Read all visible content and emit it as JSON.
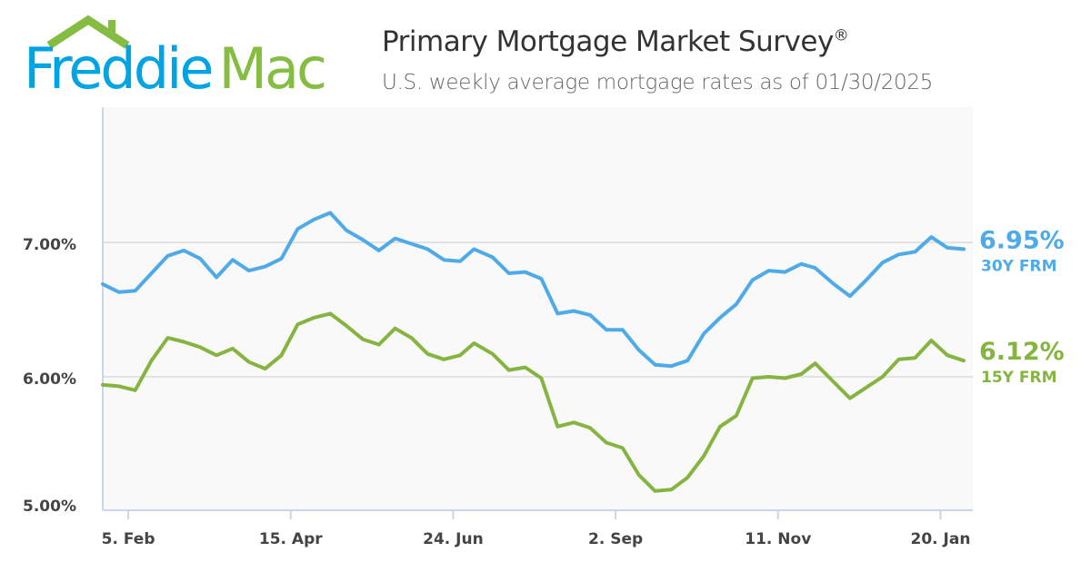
{
  "logo": {
    "text_part1": "Freddie",
    "text_part2": "Mac",
    "color_blue": "#00a3e3",
    "color_green": "#84bd41"
  },
  "header": {
    "title": "Primary Mortgage Market Survey",
    "title_mark": "®",
    "subtitle": "U.S. weekly average mortgage rates as of 01/30/2025"
  },
  "chart_data": {
    "type": "line",
    "title": "Primary Mortgage Market Survey®",
    "subtitle": "U.S. weekly average mortgage rates as of 01/30/2025",
    "xlabel": "",
    "ylabel": "",
    "ylim": [
      5.0,
      8.0
    ],
    "grid": true,
    "y_ticks": [
      5.0,
      6.0,
      7.0
    ],
    "y_tick_labels": [
      "5.00%",
      "6.00%",
      "7.00%"
    ],
    "x_ticks": [
      "2024-02-05",
      "2024-04-15",
      "2024-06-24",
      "2024-09-02",
      "2024-11-11",
      "2025-01-20"
    ],
    "x_tick_labels": [
      "5. Feb",
      "15. Apr",
      "24. Jun",
      "2. Sep",
      "11. Nov",
      "20. Jan"
    ],
    "x": [
      "2024-01-25",
      "2024-02-01",
      "2024-02-08",
      "2024-02-15",
      "2024-02-22",
      "2024-02-29",
      "2024-03-07",
      "2024-03-14",
      "2024-03-21",
      "2024-03-28",
      "2024-04-04",
      "2024-04-11",
      "2024-04-18",
      "2024-04-25",
      "2024-05-02",
      "2024-05-09",
      "2024-05-16",
      "2024-05-23",
      "2024-05-30",
      "2024-06-06",
      "2024-06-13",
      "2024-06-20",
      "2024-06-27",
      "2024-07-03",
      "2024-07-11",
      "2024-07-18",
      "2024-07-25",
      "2024-08-01",
      "2024-08-08",
      "2024-08-15",
      "2024-08-22",
      "2024-08-29",
      "2024-09-05",
      "2024-09-12",
      "2024-09-19",
      "2024-09-26",
      "2024-10-03",
      "2024-10-10",
      "2024-10-17",
      "2024-10-24",
      "2024-10-31",
      "2024-11-07",
      "2024-11-14",
      "2024-11-21",
      "2024-11-27",
      "2024-12-05",
      "2024-12-12",
      "2024-12-19",
      "2024-12-26",
      "2025-01-02",
      "2025-01-09",
      "2025-01-16",
      "2025-01-23",
      "2025-01-30"
    ],
    "series": [
      {
        "name": "30Y FRM",
        "color": "#4fabe8",
        "end_label": "6.95%",
        "values": [
          6.69,
          6.63,
          6.64,
          6.77,
          6.9,
          6.94,
          6.88,
          6.74,
          6.87,
          6.79,
          6.82,
          6.88,
          7.1,
          7.17,
          7.22,
          7.09,
          7.02,
          6.94,
          7.03,
          6.99,
          6.95,
          6.87,
          6.86,
          6.95,
          6.89,
          6.77,
          6.78,
          6.73,
          6.47,
          6.49,
          6.46,
          6.35,
          6.35,
          6.2,
          6.09,
          6.08,
          6.12,
          6.32,
          6.44,
          6.54,
          6.72,
          6.79,
          6.78,
          6.84,
          6.81,
          6.69,
          6.6,
          6.72,
          6.85,
          6.91,
          6.93,
          7.04,
          6.96,
          6.95
        ]
      },
      {
        "name": "15Y FRM",
        "color": "#86b441",
        "end_label": "6.12%",
        "values": [
          5.94,
          5.93,
          5.9,
          6.12,
          6.29,
          6.26,
          6.22,
          6.16,
          6.21,
          6.11,
          6.06,
          6.16,
          6.39,
          6.44,
          6.47,
          6.38,
          6.28,
          6.24,
          6.36,
          6.29,
          6.17,
          6.13,
          6.16,
          6.25,
          6.17,
          6.05,
          6.07,
          5.99,
          5.63,
          5.66,
          5.62,
          5.51,
          5.47,
          5.27,
          5.15,
          5.16,
          5.25,
          5.41,
          5.63,
          5.71,
          5.99,
          6.0,
          5.99,
          6.02,
          6.1,
          5.96,
          5.84,
          5.92,
          6.0,
          6.13,
          6.14,
          6.27,
          6.16,
          6.12
        ]
      }
    ]
  }
}
